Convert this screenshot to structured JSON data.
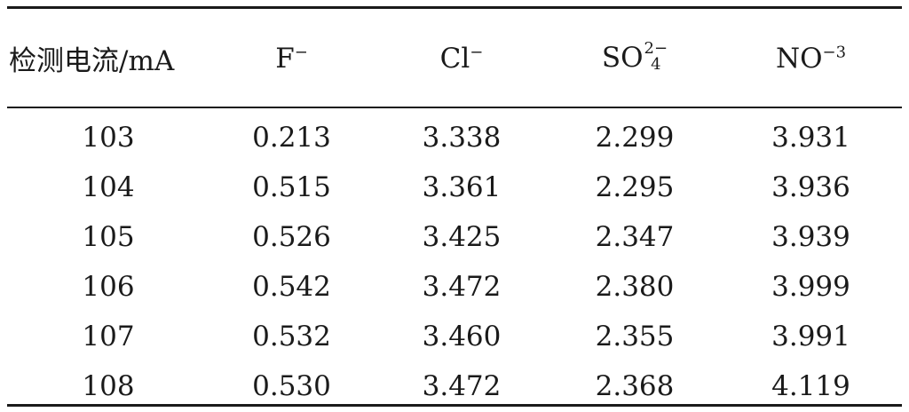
{
  "table": {
    "headers": {
      "current": "检测电流/mA",
      "f": {
        "base": "F",
        "sup": "−"
      },
      "cl": {
        "base": "Cl",
        "sup": "−"
      },
      "so4": {
        "base": "SO",
        "sup": "2−",
        "sub": "4"
      },
      "no3": {
        "base": "NO",
        "sup": "−3"
      }
    },
    "rows": [
      {
        "current": "103",
        "f": "0.213",
        "cl": "3.338",
        "so4": "2.299",
        "no3": "3.931"
      },
      {
        "current": "104",
        "f": "0.515",
        "cl": "3.361",
        "so4": "2.295",
        "no3": "3.936"
      },
      {
        "current": "105",
        "f": "0.526",
        "cl": "3.425",
        "so4": "2.347",
        "no3": "3.939"
      },
      {
        "current": "106",
        "f": "0.542",
        "cl": "3.472",
        "so4": "2.380",
        "no3": "3.999"
      },
      {
        "current": "107",
        "f": "0.532",
        "cl": "3.460",
        "so4": "2.355",
        "no3": "3.991"
      },
      {
        "current": "108",
        "f": "0.530",
        "cl": "3.472",
        "so4": "2.368",
        "no3": "4.119"
      }
    ]
  }
}
